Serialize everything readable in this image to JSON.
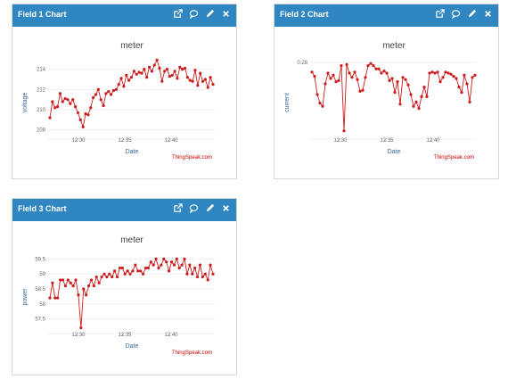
{
  "colors": {
    "header": "#2f86c1",
    "series": "#cc1c1c",
    "grid": "#e6e6e6"
  },
  "header_icons": [
    "external-link-icon",
    "comment-icon",
    "edit-icon",
    "close-icon"
  ],
  "panels": [
    {
      "title": "Field 1 Chart",
      "credit": "ThingSpeak.com",
      "chart_data": {
        "type": "line",
        "title": "meter",
        "xlabel": "Date",
        "ylabel": "voltage",
        "x_ticks": [
          "12:30",
          "12:35",
          "12:40"
        ],
        "y_ticks": [
          208,
          210,
          212,
          214
        ],
        "ylim": [
          207.8,
          215.2
        ],
        "series": [
          {
            "values": [
              209.2,
              210.8,
              210.2,
              210.3,
              211.6,
              210.8,
              211.1,
              211.0,
              210.6,
              211.0,
              210.3,
              209.7,
              209.0,
              208.3,
              209.6,
              209.5,
              210.2,
              211.2,
              211.5,
              212.0,
              211.0,
              210.4,
              211.6,
              211.8,
              211.5,
              211.9,
              212.0,
              212.5,
              213.1,
              212.3,
              213.4,
              212.9,
              213.2,
              213.8,
              213.5,
              213.7,
              213.6,
              214.0,
              213.2,
              214.2,
              213.8,
              214.4,
              214.9,
              214.1,
              212.8,
              213.8,
              214.0,
              213.3,
              213.4,
              213.8,
              213.1,
              214.2,
              214.0,
              214.1,
              213.2,
              212.9,
              212.8,
              213.9,
              212.4,
              213.6,
              212.8,
              213.0,
              212.2,
              213.2,
              212.5
            ]
          }
        ]
      }
    },
    {
      "title": "Field 2 Chart",
      "credit": "ThingSpeak.com",
      "chart_data": {
        "type": "line",
        "title": "meter",
        "xlabel": "Date",
        "ylabel": "current",
        "x_ticks": [
          "12:30",
          "12:35",
          "12:40"
        ],
        "y_ticks": [
          0.28
        ],
        "ylim": [
          0.215,
          0.285
        ],
        "series": [
          {
            "values": [
              0.271,
              0.267,
              0.25,
              0.242,
              0.239,
              0.26,
              0.27,
              0.265,
              0.268,
              0.262,
              0.263,
              0.277,
              0.216,
              0.278,
              0.27,
              0.266,
              0.271,
              0.264,
              0.253,
              0.254,
              0.266,
              0.277,
              0.279,
              0.277,
              0.274,
              0.274,
              0.27,
              0.272,
              0.27,
              0.263,
              0.265,
              0.252,
              0.262,
              0.241,
              0.266,
              0.264,
              0.259,
              0.25,
              0.239,
              0.243,
              0.237,
              0.248,
              0.257,
              0.248,
              0.27,
              0.271,
              0.27,
              0.271,
              0.262,
              0.266,
              0.271,
              0.27,
              0.269,
              0.267,
              0.265,
              0.257,
              0.252,
              0.268,
              0.26,
              0.243,
              0.266,
              0.268
            ]
          }
        ]
      }
    },
    {
      "title": "Field 3 Chart",
      "credit": "ThingSpeak.com",
      "chart_data": {
        "type": "line",
        "title": "meter",
        "xlabel": "Date",
        "ylabel": "power",
        "x_ticks": [
          "12:30",
          "12:35",
          "12:40"
        ],
        "y_ticks": [
          57.5,
          58.0,
          58.5,
          59.0,
          59.5
        ],
        "ylim": [
          57.25,
          59.75
        ],
        "series": [
          {
            "values": [
              58.2,
              58.7,
              58.2,
              58.2,
              58.8,
              58.8,
              58.6,
              58.8,
              58.7,
              58.6,
              58.8,
              58.3,
              57.2,
              58.5,
              58.3,
              58.6,
              58.8,
              58.6,
              58.9,
              58.7,
              58.9,
              59.0,
              58.9,
              59.0,
              58.9,
              59.1,
              58.9,
              59.2,
              59.2,
              59.0,
              59.1,
              59.0,
              59.1,
              59.3,
              59.1,
              59.1,
              59.0,
              59.2,
              59.2,
              59.4,
              59.3,
              59.5,
              59.2,
              59.3,
              59.5,
              59.4,
              59.1,
              59.4,
              59.3,
              59.5,
              59.2,
              59.3,
              59.5,
              59.0,
              59.3,
              59.0,
              59.2,
              58.9,
              59.3,
              58.9,
              59.0,
              58.8,
              59.3,
              59.0
            ]
          }
        ]
      }
    }
  ]
}
